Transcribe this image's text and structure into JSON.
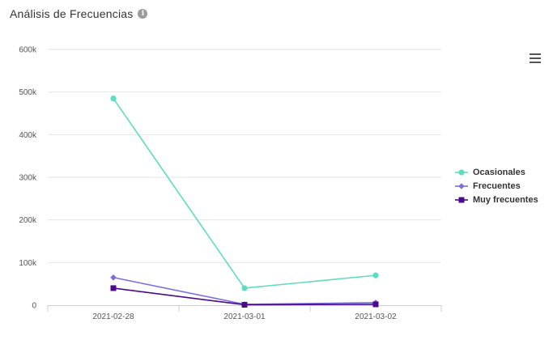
{
  "header": {
    "title": "Análisis de Frecuencias",
    "info_icon": "info-icon"
  },
  "toolbar": {
    "menu_icon": "hamburger-menu-icon"
  },
  "chart_data": {
    "type": "line",
    "title": "Análisis de Frecuencias",
    "categories": [
      "2021-02-28",
      "2021-03-01",
      "2021-03-02"
    ],
    "ylim": [
      0,
      600000
    ],
    "yticks": [
      0,
      100000,
      200000,
      300000,
      400000,
      500000,
      600000
    ],
    "ytick_labels": [
      "0",
      "100k",
      "200k",
      "300k",
      "400k",
      "500k",
      "600k"
    ],
    "grid": true,
    "legend_position": "right",
    "series": [
      {
        "name": "Ocasionales",
        "color": "#5ddcc2",
        "marker": "circle",
        "values": [
          485000,
          40000,
          70000
        ]
      },
      {
        "name": "Frecuentes",
        "color": "#7b6fe0",
        "marker": "diamond",
        "values": [
          65000,
          2000,
          6000
        ]
      },
      {
        "name": "Muy frecuentes",
        "color": "#4b0a8a",
        "marker": "square",
        "values": [
          40000,
          1000,
          2000
        ]
      }
    ]
  }
}
